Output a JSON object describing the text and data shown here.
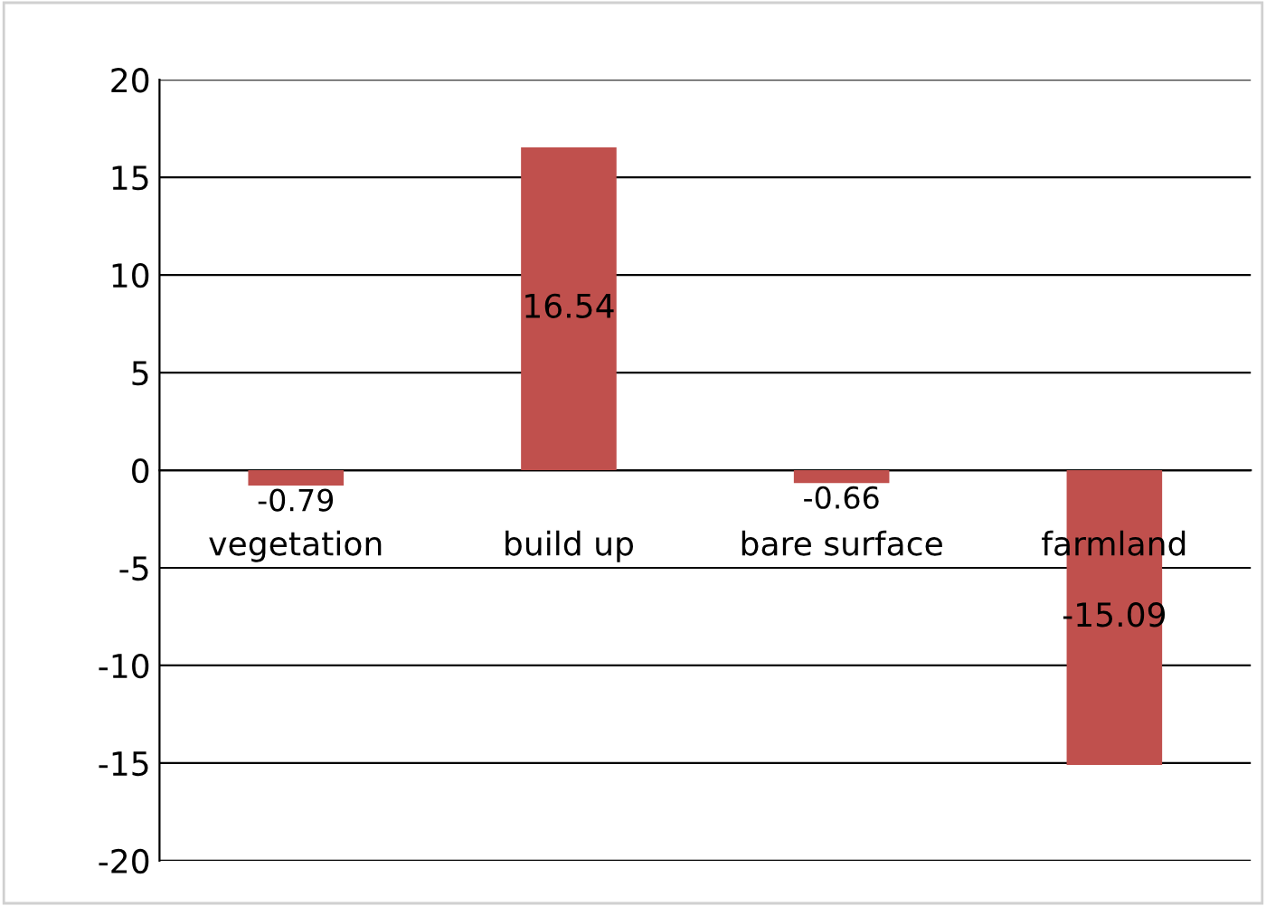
{
  "chart_data": {
    "type": "bar",
    "categories": [
      "vegetation",
      "build up",
      "bare surface",
      "farmland"
    ],
    "values": [
      -0.79,
      16.54,
      -0.66,
      -15.09
    ],
    "color": "#c0504d",
    "ylim": [
      -20,
      20
    ],
    "yticks": [
      -20,
      -15,
      -10,
      -5,
      0,
      5,
      10,
      15,
      20
    ],
    "grid": "y",
    "data_labels": true
  }
}
